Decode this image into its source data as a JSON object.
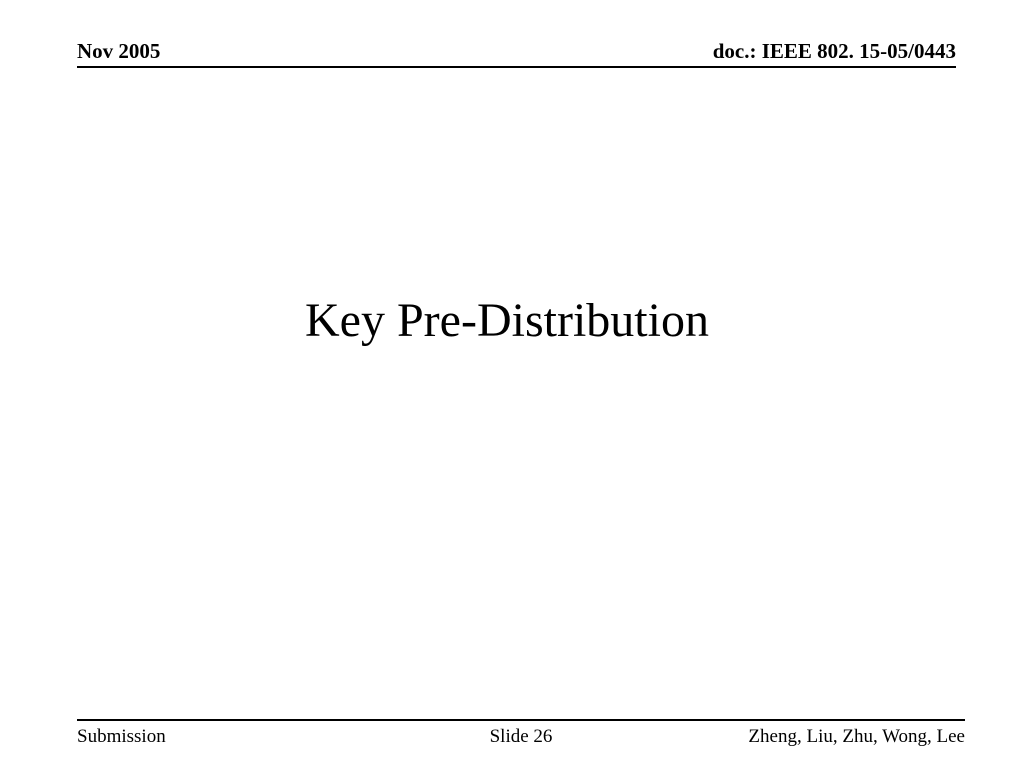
{
  "header": {
    "date": "Nov 2005",
    "doc_id": "doc.: IEEE 802. 15-05/0443"
  },
  "title": "Key Pre-Distribution",
  "footer": {
    "left": "Submission",
    "center": "Slide 26",
    "right": "Zheng, Liu, Zhu, Wong, Lee"
  },
  "colors": {
    "background": "#ffffff",
    "text": "#000000",
    "rule": "#000000"
  }
}
